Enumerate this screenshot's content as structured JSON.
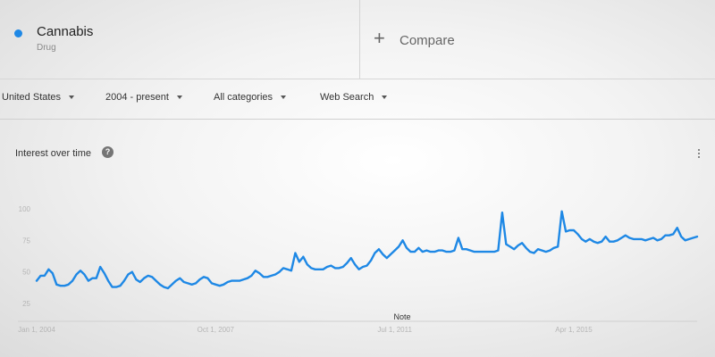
{
  "term": {
    "name": "Cannabis",
    "type": "Drug",
    "color": "#1e88e5"
  },
  "compare": {
    "label": "Compare",
    "icon": "plus-icon"
  },
  "filters": {
    "region": "United States",
    "time": "2004 - present",
    "category": "All categories",
    "search_type": "Web Search"
  },
  "interest_panel": {
    "title": "Interest over time",
    "help_icon": "help-circle-icon",
    "menu_icon": "more-vert-icon",
    "note_label": "Note"
  },
  "chart_data": {
    "type": "line",
    "title": "Interest over time",
    "xlabel": "",
    "ylabel": "",
    "ylim": [
      0,
      100
    ],
    "y_ticks": [
      25,
      50,
      75,
      100
    ],
    "x_ticks": [
      "Jan 1, 2004",
      "Oct 1, 2007",
      "Jul 1, 2011",
      "Apr 1, 2015"
    ],
    "x_range": [
      "Jan 2004",
      "Jun 2016"
    ],
    "grid": false,
    "legend": "none",
    "series": [
      {
        "name": "Cannabis",
        "color": "#1e88e5",
        "values": [
          43,
          47,
          47,
          52,
          49,
          40,
          39,
          39,
          40,
          43,
          48,
          51,
          48,
          43,
          45,
          45,
          54,
          49,
          43,
          38,
          38,
          39,
          43,
          48,
          50,
          44,
          42,
          45,
          47,
          46,
          43,
          40,
          38,
          37,
          40,
          43,
          45,
          42,
          41,
          40,
          41,
          44,
          46,
          45,
          41,
          40,
          39,
          40,
          42,
          43,
          43,
          43,
          44,
          45,
          47,
          51,
          49,
          46,
          46,
          47,
          48,
          50,
          53,
          52,
          51,
          65,
          58,
          62,
          56,
          53,
          52,
          52,
          52,
          54,
          55,
          53,
          53,
          54,
          57,
          61,
          56,
          52,
          54,
          55,
          59,
          65,
          68,
          64,
          61,
          64,
          67,
          70,
          75,
          69,
          66,
          66,
          69,
          66,
          67,
          66,
          66,
          67,
          67,
          66,
          66,
          67,
          77,
          68,
          68,
          67,
          66,
          66,
          66,
          66,
          66,
          66,
          67,
          97,
          72,
          70,
          68,
          71,
          73,
          69,
          66,
          65,
          68,
          67,
          66,
          67,
          69,
          70,
          98,
          82,
          83,
          83,
          80,
          76,
          74,
          76,
          74,
          73,
          74,
          78,
          74,
          74,
          75,
          77,
          79,
          77,
          76,
          76,
          76,
          75,
          76,
          77,
          75,
          76,
          79,
          79,
          80,
          85,
          78,
          75,
          76,
          77,
          78
        ]
      }
    ]
  }
}
